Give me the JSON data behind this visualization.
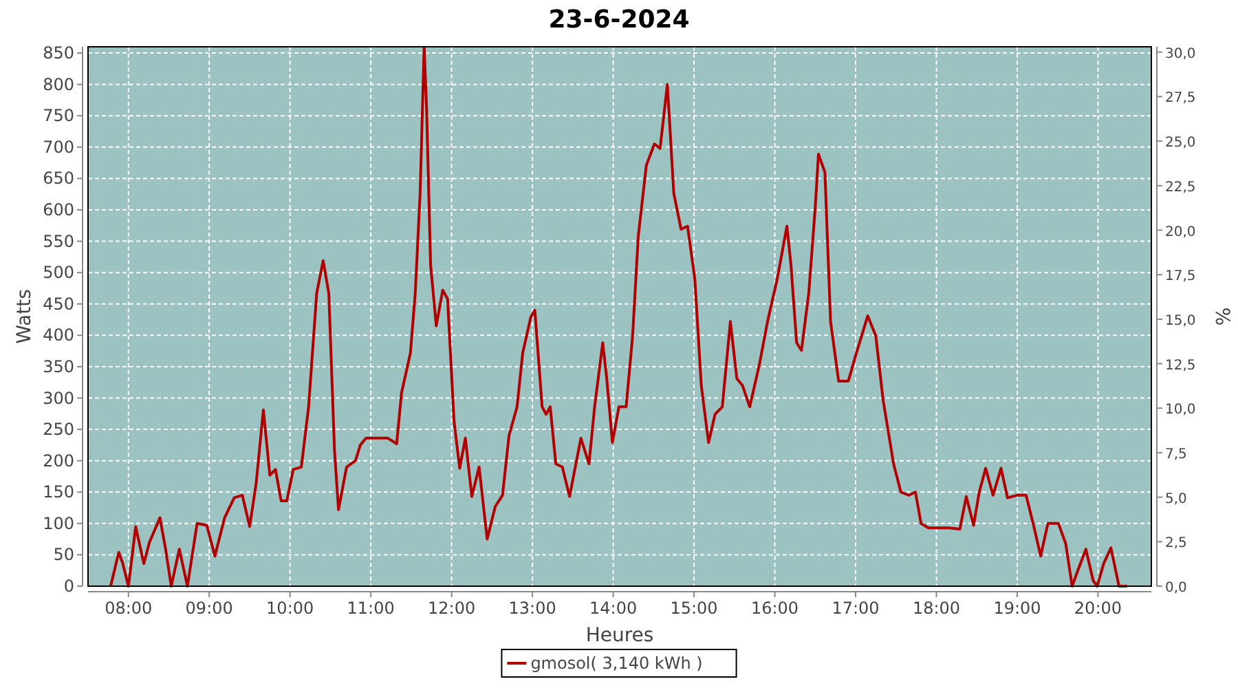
{
  "chart_data": {
    "type": "line",
    "title": "23-6-2024",
    "xlabel": "Heures",
    "ylabel": "Watts",
    "y2label": "%",
    "xlim": [
      7.5,
      20.66
    ],
    "xticks": [
      {
        "value": 8,
        "label": "08:00"
      },
      {
        "value": 9,
        "label": "09:00"
      },
      {
        "value": 10,
        "label": "10:00"
      },
      {
        "value": 11,
        "label": "11:00"
      },
      {
        "value": 12,
        "label": "12:00"
      },
      {
        "value": 13,
        "label": "13:00"
      },
      {
        "value": 14,
        "label": "14:00"
      },
      {
        "value": 15,
        "label": "15:00"
      },
      {
        "value": 16,
        "label": "16:00"
      },
      {
        "value": 17,
        "label": "17:00"
      },
      {
        "value": 18,
        "label": "18:00"
      },
      {
        "value": 19,
        "label": "19:00"
      },
      {
        "value": 20,
        "label": "20:00"
      }
    ],
    "ylim": [
      0,
      860
    ],
    "yticks": [
      0,
      50,
      100,
      150,
      200,
      250,
      300,
      350,
      400,
      450,
      500,
      550,
      600,
      650,
      700,
      750,
      800,
      850
    ],
    "y2lim": [
      0,
      30.3
    ],
    "y2ticks": [
      {
        "value": 0,
        "label": "0,0"
      },
      {
        "value": 2.5,
        "label": "2,5"
      },
      {
        "value": 5,
        "label": "5,0"
      },
      {
        "value": 7.5,
        "label": "7,5"
      },
      {
        "value": 10,
        "label": "10,0"
      },
      {
        "value": 12.5,
        "label": "12,5"
      },
      {
        "value": 15,
        "label": "15,0"
      },
      {
        "value": 17.5,
        "label": "17,5"
      },
      {
        "value": 20,
        "label": "20,0"
      },
      {
        "value": 22.5,
        "label": "22,5"
      },
      {
        "value": 25,
        "label": "25,0"
      },
      {
        "value": 27.5,
        "label": "27,5"
      },
      {
        "value": 30,
        "label": "30,0"
      }
    ],
    "grid": true,
    "legend": "bottom",
    "line_style": "solid",
    "series": [
      {
        "name": "gmosol( 3,140 kWh )",
        "color": "#b00000",
        "x": [
          7.78,
          7.88,
          7.93,
          8.0,
          8.09,
          8.19,
          8.26,
          8.39,
          8.46,
          8.53,
          8.63,
          8.73,
          8.85,
          8.97,
          9.07,
          9.19,
          9.31,
          9.41,
          9.5,
          9.58,
          9.67,
          9.75,
          9.82,
          9.89,
          9.96,
          10.04,
          10.14,
          10.23,
          10.33,
          10.41,
          10.48,
          10.55,
          10.6,
          10.7,
          10.81,
          10.87,
          10.94,
          11.1,
          11.21,
          11.32,
          11.38,
          11.49,
          11.55,
          11.61,
          11.66,
          11.69,
          11.74,
          11.81,
          11.89,
          11.95,
          12.03,
          12.1,
          12.17,
          12.25,
          12.34,
          12.44,
          12.54,
          12.63,
          12.71,
          12.81,
          12.88,
          12.98,
          13.03,
          13.12,
          13.17,
          13.22,
          13.29,
          13.37,
          13.46,
          13.6,
          13.7,
          13.77,
          13.87,
          13.92,
          13.99,
          14.07,
          14.16,
          14.24,
          14.31,
          14.41,
          14.51,
          14.58,
          14.67,
          14.75,
          14.84,
          14.92,
          15.01,
          15.09,
          15.18,
          15.26,
          15.35,
          15.45,
          15.53,
          15.6,
          15.69,
          15.81,
          15.91,
          16.03,
          16.15,
          16.2,
          16.27,
          16.33,
          16.42,
          16.5,
          16.54,
          16.62,
          16.69,
          16.79,
          16.91,
          17.01,
          17.15,
          17.25,
          17.34,
          17.47,
          17.56,
          17.66,
          17.74,
          17.81,
          17.9,
          18.15,
          18.29,
          18.37,
          18.46,
          18.53,
          18.61,
          18.7,
          18.8,
          18.88,
          19.0,
          19.11,
          19.21,
          19.29,
          19.38,
          19.51,
          19.6,
          19.68,
          19.75,
          19.85,
          19.94,
          19.99,
          20.07,
          20.16,
          20.26,
          20.36
        ],
        "values": [
          0,
          54,
          36,
          0,
          95,
          36,
          70,
          109,
          59,
          0,
          59,
          0,
          100,
          97,
          48,
          109,
          141,
          145,
          95,
          163,
          281,
          177,
          186,
          136,
          136,
          186,
          190,
          286,
          467,
          519,
          467,
          218,
          122,
          190,
          200,
          225,
          236,
          236,
          236,
          227,
          308,
          372,
          467,
          626,
          859,
          762,
          512,
          415,
          472,
          458,
          263,
          188,
          236,
          143,
          190,
          75,
          127,
          145,
          240,
          286,
          372,
          429,
          440,
          286,
          274,
          286,
          195,
          190,
          143,
          236,
          195,
          286,
          388,
          331,
          229,
          286,
          286,
          399,
          558,
          671,
          705,
          698,
          800,
          626,
          569,
          574,
          490,
          320,
          229,
          274,
          286,
          422,
          331,
          320,
          286,
          354,
          422,
          490,
          574,
          512,
          388,
          376,
          467,
          603,
          689,
          660,
          422,
          327,
          327,
          372,
          431,
          399,
          297,
          195,
          150,
          145,
          150,
          100,
          93,
          93,
          91,
          143,
          97,
          150,
          188,
          145,
          188,
          141,
          145,
          145,
          93,
          48,
          100,
          100,
          68,
          0,
          25,
          59,
          9,
          0,
          36,
          61,
          0,
          0
        ]
      }
    ]
  }
}
